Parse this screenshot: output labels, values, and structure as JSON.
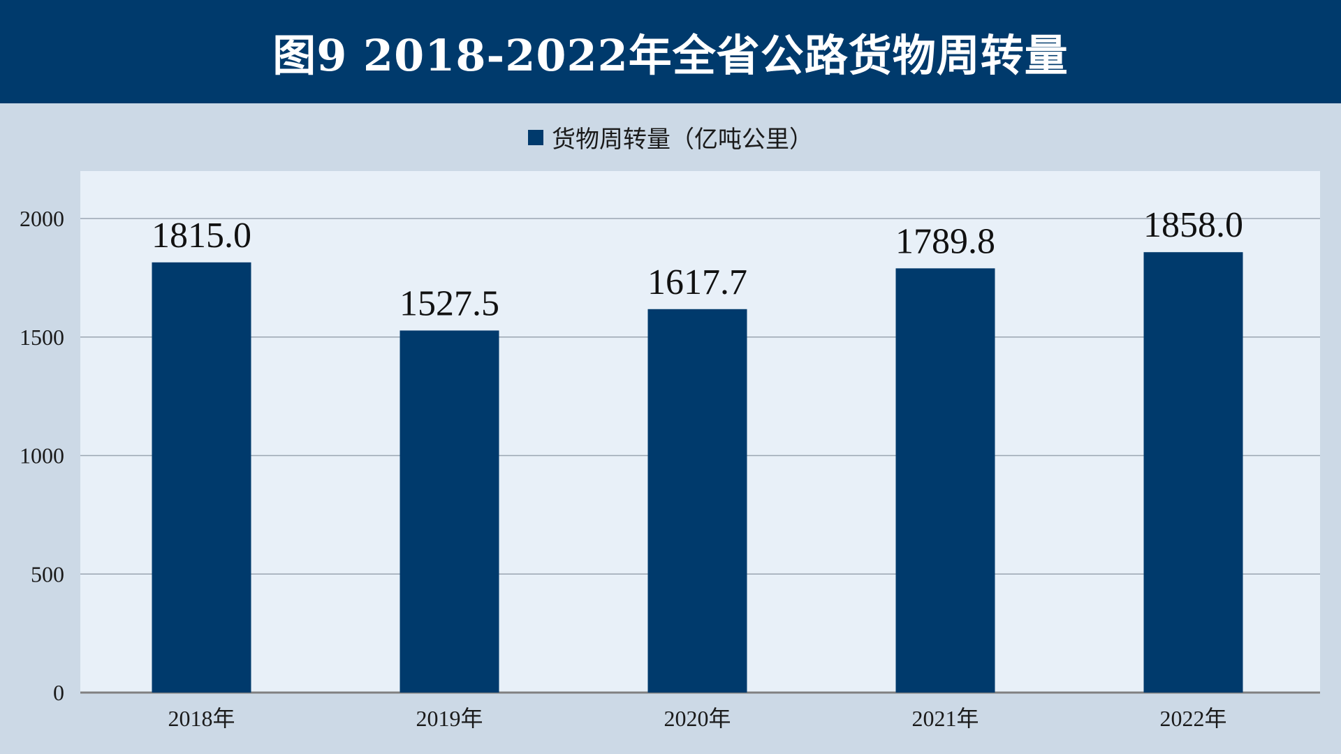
{
  "title": "图9  2018-2022年全省公路货物周转量",
  "colors": {
    "header_bg": "#003a6c",
    "page_bg": "#ccd9e6",
    "plot_bg": "#e8f0f8",
    "bar": "#003a6c",
    "grid": "#9aa5b1",
    "axis": "#808080"
  },
  "chart_data": {
    "type": "bar",
    "categories": [
      "2018年",
      "2019年",
      "2020年",
      "2021年",
      "2022年"
    ],
    "series": [
      {
        "name": "货物周转量（亿吨公里）",
        "values": [
          1815.0,
          1527.5,
          1617.7,
          1789.8,
          1858.0
        ],
        "labels": [
          "1815.0",
          "1527.5",
          "1617.7",
          "1789.8",
          "1858.0"
        ]
      }
    ],
    "yticks": [
      "0",
      "500",
      "1000",
      "1500",
      "2000"
    ],
    "ylim": [
      0,
      2200
    ],
    "grid": true,
    "legend": "top-center"
  }
}
